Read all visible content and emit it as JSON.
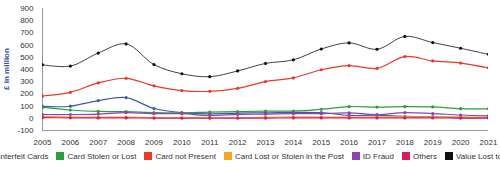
{
  "chart_data": {
    "type": "line",
    "y_label": "£ in million",
    "x": [
      2005,
      2006,
      2007,
      2008,
      2009,
      2010,
      2011,
      2012,
      2013,
      2014,
      2015,
      2016,
      2017,
      2018,
      2019,
      2020,
      2021
    ],
    "xlim": [
      2005,
      2021
    ],
    "xticks": [
      2005,
      2006,
      2007,
      2008,
      2009,
      2010,
      2011,
      2012,
      2013,
      2014,
      2015,
      2016,
      2017,
      2018,
      2019,
      2020,
      2021
    ],
    "ylim": [
      -100,
      900
    ],
    "yticks": [
      -100,
      0,
      100,
      200,
      300,
      400,
      500,
      600,
      700,
      800,
      900
    ],
    "grid": false,
    "legend": "bottom",
    "series": [
      {
        "name": "Counterfeit Cards",
        "color": "#3b5ba9",
        "marker": "circle",
        "values": [
          97,
          99,
          145,
          170,
          80,
          47,
          36,
          43,
          44,
          48,
          46,
          24,
          25,
          16,
          13,
          5,
          3
        ]
      },
      {
        "name": "Card Stolen or Lost",
        "color": "#2e9e3e",
        "marker": "circle",
        "values": [
          89,
          68,
          56,
          54,
          47,
          44,
          51,
          55,
          59,
          59,
          74,
          96,
          92,
          95,
          93,
          79,
          78
        ]
      },
      {
        "name": "Card not Present",
        "color": "#e8392b",
        "marker": "circle",
        "values": [
          183,
          213,
          290,
          328,
          266,
          227,
          221,
          246,
          301,
          331,
          398,
          432,
          409,
          506,
          470,
          453,
          413
        ]
      },
      {
        "name": "Card Lost or Stolen in the Post",
        "color": "#f5a623",
        "marker": "circle",
        "values": [
          15,
          10,
          10,
          10,
          6,
          4,
          3,
          4,
          7,
          12,
          10,
          10,
          11,
          12,
          12,
          11,
          9
        ]
      },
      {
        "name": "ID Fraud",
        "color": "#8e44ad",
        "marker": "circle",
        "values": [
          31,
          31,
          35,
          47,
          38,
          38,
          23,
          32,
          34,
          38,
          38,
          45,
          31,
          47,
          39,
          27,
          20
        ]
      },
      {
        "name": "Others",
        "color": "#d81b60",
        "marker": "circle",
        "values": [
          5,
          4,
          3,
          3,
          2,
          2,
          2,
          2,
          2,
          3,
          3,
          3,
          3,
          3,
          3,
          2,
          2
        ]
      },
      {
        "name": "Value Lost to Fraud",
        "color": "#111111",
        "marker": "circle",
        "values": [
          439,
          428,
          535,
          610,
          440,
          365,
          341,
          388,
          450,
          479,
          568,
          618,
          566,
          671,
          621,
          574,
          524
        ]
      }
    ]
  }
}
